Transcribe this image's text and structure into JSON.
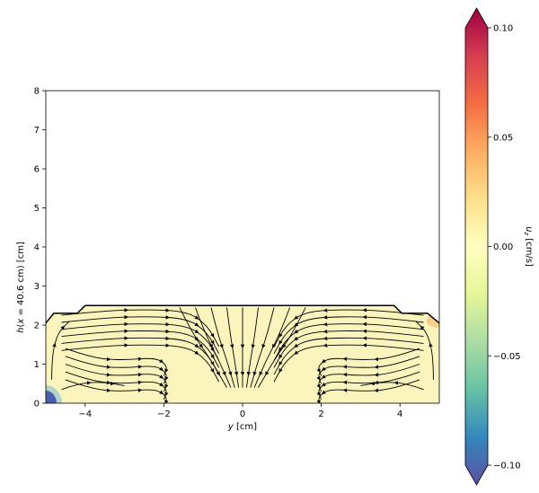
{
  "chart_data": {
    "type": "heatmap",
    "subtype": "streamline-field",
    "xlabel": "y [cm]",
    "ylabel": "h(x = 40.6 cm) [cm]",
    "xlim": [
      -5,
      5
    ],
    "ylim": [
      0,
      8
    ],
    "xticks": [
      -4,
      -2,
      0,
      2,
      4
    ],
    "xtick_labels": [
      "−4",
      "−2",
      "0",
      "2",
      "4"
    ],
    "yticks": [
      0,
      1,
      2,
      3,
      4,
      5,
      6,
      7,
      8
    ],
    "ytick_labels": [
      "0",
      "1",
      "2",
      "3",
      "4",
      "5",
      "6",
      "7",
      "8"
    ],
    "grid": false,
    "surface_profile": {
      "y": [
        -5.0,
        -4.8,
        -4.2,
        -4.0,
        0.0,
        3.85,
        4.05,
        4.7,
        5.0
      ],
      "h": [
        2.05,
        2.3,
        2.3,
        2.5,
        2.5,
        2.5,
        2.3,
        2.3,
        2.05
      ]
    },
    "field": {
      "background_value": 0.0,
      "features": [
        {
          "location": "bottom-left corner",
          "value": -0.1
        },
        {
          "location": "upper-right edge",
          "value": 0.025
        }
      ]
    },
    "colorbar": {
      "label": "u_z [cm/s]",
      "colormap": "Spectral_r",
      "range": [
        -0.1,
        0.1
      ],
      "ticks": [
        -0.1,
        -0.05,
        0.0,
        0.05,
        0.1
      ],
      "tick_labels": [
        "−0.10",
        "−0.05",
        "0.00",
        "0.05",
        "0.10"
      ],
      "extend": "both",
      "colors": [
        "#5e4fa2",
        "#3288bd",
        "#66c2a5",
        "#abdda4",
        "#e6f598",
        "#ffffbf",
        "#fee08b",
        "#fdae61",
        "#f46d43",
        "#d53e4f",
        "#9e0142"
      ]
    }
  }
}
